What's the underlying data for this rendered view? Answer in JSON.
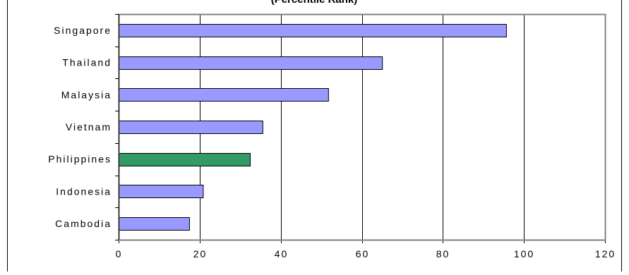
{
  "chart_data": {
    "type": "bar",
    "orientation": "horizontal",
    "title": "(Percentile Rank)",
    "categories": [
      "Singapore",
      "Thailand",
      "Malaysia",
      "Vietnam",
      "Philippines",
      "Indonesia",
      "Cambodia"
    ],
    "values": [
      95.6,
      65.0,
      51.7,
      35.5,
      32.4,
      20.8,
      17.4
    ],
    "xlabel": "",
    "ylabel": "",
    "xlim": [
      0,
      120
    ],
    "xticks": [
      0,
      20,
      40,
      60,
      80,
      100,
      120
    ],
    "xtick_labels": [
      "0",
      "20",
      "40",
      "60",
      "80",
      "100",
      "120"
    ],
    "grid": "vertical",
    "legend": "none",
    "colors": {
      "bar": "#9999ff",
      "highlight_bar": "#339966",
      "bar_stroke": "#000000",
      "frame": "#808080",
      "grid": "#000000"
    },
    "highlight_category": "Philippines"
  }
}
